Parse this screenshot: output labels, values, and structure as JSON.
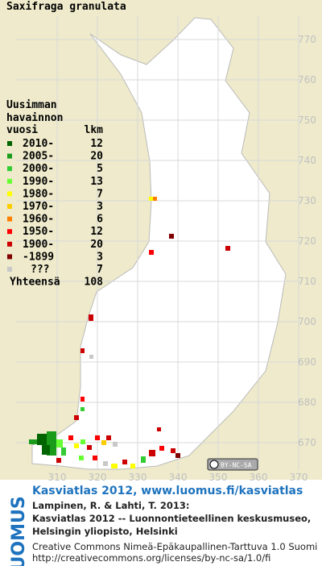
{
  "map": {
    "title": "Saxifraga granulata",
    "legend": {
      "header": [
        "Uusimman",
        "havainnon",
        "vuosi",
        "lkm"
      ],
      "items": [
        {
          "label": "2010-",
          "count": 12,
          "color": "#006400"
        },
        {
          "label": "2005-",
          "count": 20,
          "color": "#1a9c1a"
        },
        {
          "label": "2000-",
          "count": 5,
          "color": "#33cc33"
        },
        {
          "label": "1990-",
          "count": 13,
          "color": "#66ff33"
        },
        {
          "label": "1980-",
          "count": 7,
          "color": "#ffff00"
        },
        {
          "label": "1970-",
          "count": 3,
          "color": "#ffcc00"
        },
        {
          "label": "1960-",
          "count": 6,
          "color": "#ff8000"
        },
        {
          "label": "1950-",
          "count": 12,
          "color": "#ff0000"
        },
        {
          "label": "1900-",
          "count": 20,
          "color": "#cc0000"
        },
        {
          "label": "-1899",
          "count": 3,
          "color": "#800000"
        },
        {
          "label": "???",
          "count": 7,
          "color": "#c8c8c8"
        }
      ],
      "total_label": "Yhteensä",
      "total": 108
    },
    "grid": {
      "x_labels": [
        310,
        320,
        330,
        340,
        350,
        360,
        370
      ],
      "y_labels": [
        770,
        760,
        750,
        740,
        730,
        720,
        710,
        700,
        690,
        680,
        670
      ]
    },
    "license_badge": "BY-NC-SA",
    "logo": "LUOMUS",
    "footer": {
      "link": "Kasviatlas 2012, www.luomus.fi/kasviatlas",
      "citation": [
        "Lampinen, R. & Lahti, T. 2013:",
        "Kasviatlas 2012 -- Luonnontieteellinen keskusmuseo,",
        "Helsingin yliopisto, Helsinki"
      ],
      "license": [
        "Creative Commons Nimeä-Epäkaupallinen-Tarttuva 1.0 Suomi",
        "http://creativecommons.org/licenses/by-nc-sa/1.0/fi"
      ]
    }
  }
}
